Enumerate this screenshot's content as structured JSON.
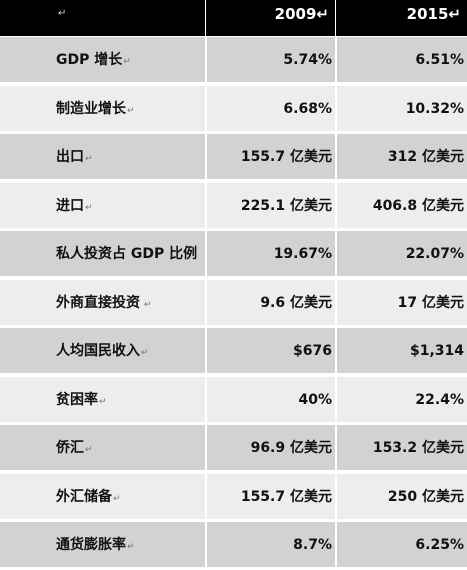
{
  "header": {
    "label": "↵",
    "col1": "2009↵",
    "col2": "2015↵"
  },
  "rows": [
    {
      "label": "GDP 增长",
      "mark": "↵",
      "v2009": "5.74%",
      "v2015": "6.51%"
    },
    {
      "label": "制造业增长",
      "mark": "↵",
      "v2009": "6.68%",
      "v2015": "10.32%"
    },
    {
      "label": "出口",
      "mark": "↵",
      "v2009": "155.7 亿美元",
      "v2015": "312 亿美元"
    },
    {
      "label": "进口",
      "mark": "↵",
      "v2009": "225.1 亿美元",
      "v2015": "406.8 亿美元"
    },
    {
      "label": "私人投资占 GDP 比例",
      "mark": "",
      "v2009": "19.67%",
      "v2015": "22.07%"
    },
    {
      "label": "外商直接投资",
      "mark": " ↵",
      "v2009": "9.6 亿美元",
      "v2015": "17 亿美元"
    },
    {
      "label": "人均国民收入",
      "mark": "↵",
      "v2009": "$676",
      "v2015": "$1,314"
    },
    {
      "label": "贫困率",
      "mark": "↵",
      "v2009": "40%",
      "v2015": "22.4%"
    },
    {
      "label": "侨汇",
      "mark": "↵",
      "v2009": "96.9 亿美元",
      "v2015": "153.2 亿美元"
    },
    {
      "label": "外汇储备",
      "mark": "↵",
      "v2009": "155.7 亿美元",
      "v2015": "250 亿美元"
    },
    {
      "label": "通货膨胀率",
      "mark": "↵",
      "v2009": "8.7%",
      "v2015": "6.25%"
    }
  ]
}
